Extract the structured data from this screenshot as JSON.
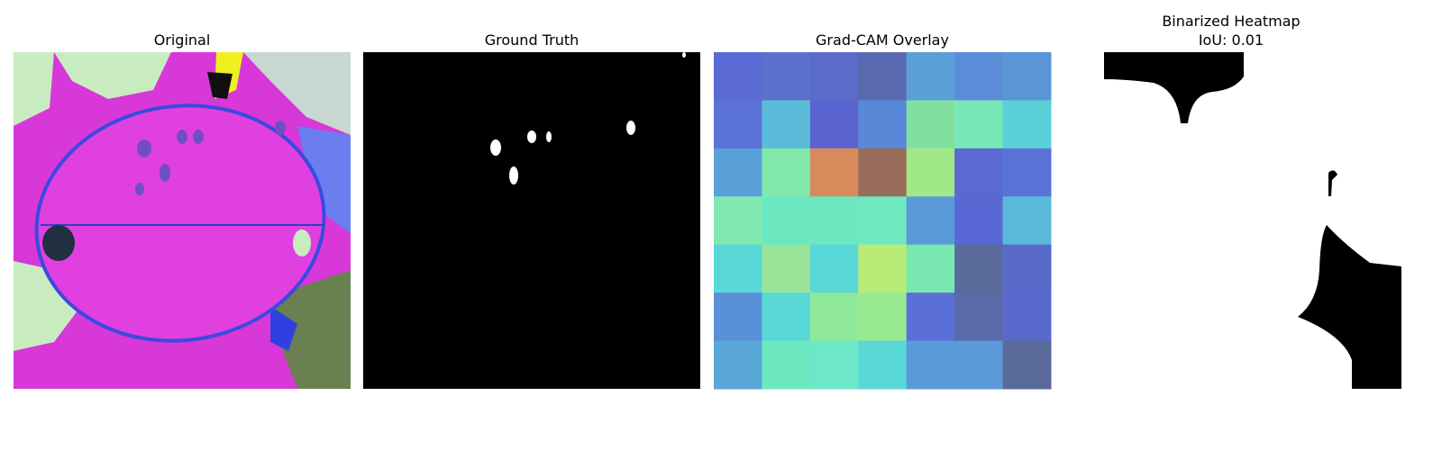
{
  "panels": [
    {
      "title": [
        "Original"
      ]
    },
    {
      "title": [
        "Ground Truth"
      ]
    },
    {
      "title": [
        "Grad-CAM Overlay"
      ]
    },
    {
      "title": [
        "Binarized Heatmap",
        "IoU: 0.01"
      ]
    }
  ]
}
